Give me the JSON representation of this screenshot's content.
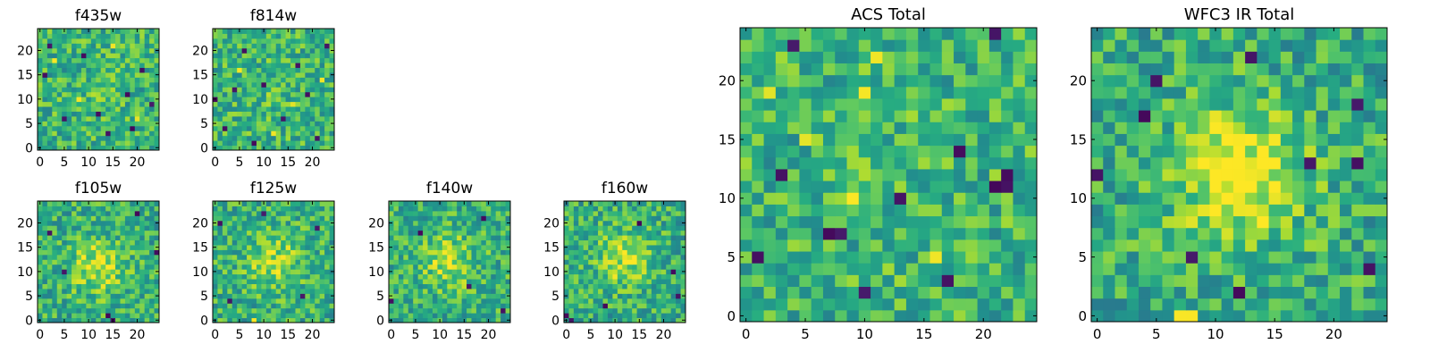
{
  "chart_data": [
    {
      "type": "heatmap",
      "title": "f435w",
      "size": 25,
      "xlim": [
        0,
        24
      ],
      "ylim": [
        0,
        24
      ],
      "xticks": [
        0,
        5,
        10,
        15,
        20
      ],
      "yticks": [
        0,
        5,
        10,
        15,
        20
      ],
      "colormap": "viridis",
      "noise_seed": 11,
      "blob": 0.05,
      "blob_center": [
        12,
        12
      ],
      "dark_pixels": [
        [
          1,
          15
        ],
        [
          5,
          6
        ],
        [
          12,
          7
        ],
        [
          18,
          11
        ],
        [
          19,
          4
        ],
        [
          2,
          21
        ],
        [
          21,
          16
        ],
        [
          9,
          19
        ],
        [
          14,
          3
        ],
        [
          23,
          9
        ]
      ],
      "bright_pixels": [
        [
          3,
          18
        ],
        [
          8,
          10
        ],
        [
          15,
          21
        ],
        [
          20,
          6
        ]
      ]
    },
    {
      "type": "heatmap",
      "title": "f814w",
      "size": 25,
      "xlim": [
        0,
        24
      ],
      "ylim": [
        0,
        24
      ],
      "xticks": [
        0,
        5,
        10,
        15,
        20
      ],
      "yticks": [
        0,
        5,
        10,
        15,
        20
      ],
      "colormap": "viridis",
      "noise_seed": 23,
      "blob": 0.05,
      "blob_center": [
        12,
        12
      ],
      "dark_pixels": [
        [
          2,
          4
        ],
        [
          6,
          20
        ],
        [
          10,
          13
        ],
        [
          14,
          6
        ],
        [
          17,
          17
        ],
        [
          21,
          2
        ],
        [
          0,
          10
        ],
        [
          23,
          21
        ],
        [
          8,
          1
        ],
        [
          19,
          11
        ],
        [
          4,
          12
        ]
      ],
      "bright_pixels": [
        [
          5,
          16
        ],
        [
          12,
          3
        ],
        [
          16,
          9
        ],
        [
          22,
          14
        ]
      ]
    },
    {
      "type": "heatmap",
      "title": "f105w",
      "size": 25,
      "xlim": [
        0,
        24
      ],
      "ylim": [
        0,
        24
      ],
      "xticks": [
        0,
        5,
        10,
        15,
        20
      ],
      "yticks": [
        0,
        5,
        10,
        15,
        20
      ],
      "colormap": "viridis",
      "noise_seed": 37,
      "blob": 0.35,
      "blob_center": [
        12,
        11
      ],
      "dark_pixels": [
        [
          14,
          1
        ],
        [
          15,
          0
        ],
        [
          2,
          18
        ],
        [
          24,
          14
        ],
        [
          5,
          10
        ],
        [
          20,
          22
        ]
      ],
      "bright_pixels": [
        [
          11,
          12
        ],
        [
          12,
          11
        ],
        [
          13,
          12
        ],
        [
          12,
          13
        ]
      ]
    },
    {
      "type": "heatmap",
      "title": "f125w",
      "size": 25,
      "xlim": [
        0,
        24
      ],
      "ylim": [
        0,
        24
      ],
      "xticks": [
        0,
        5,
        10,
        15,
        20
      ],
      "yticks": [
        0,
        5,
        10,
        15,
        20
      ],
      "colormap": "viridis",
      "noise_seed": 41,
      "blob": 0.3,
      "blob_center": [
        12,
        12
      ],
      "dark_pixels": [
        [
          18,
          5
        ],
        [
          3,
          4
        ],
        [
          21,
          19
        ],
        [
          1,
          20
        ],
        [
          10,
          22
        ]
      ],
      "bright_pixels": [
        [
          8,
          0
        ],
        [
          12,
          12
        ],
        [
          14,
          13
        ]
      ]
    },
    {
      "type": "heatmap",
      "title": "f140w",
      "size": 25,
      "xlim": [
        0,
        24
      ],
      "ylim": [
        0,
        24
      ],
      "xticks": [
        0,
        5,
        10,
        15,
        20
      ],
      "yticks": [
        0,
        5,
        10,
        15,
        20
      ],
      "colormap": "viridis",
      "noise_seed": 53,
      "blob": 0.3,
      "blob_center": [
        12,
        12
      ],
      "dark_pixels": [
        [
          0,
          4
        ],
        [
          23,
          2
        ],
        [
          19,
          21
        ],
        [
          6,
          18
        ],
        [
          16,
          7
        ]
      ],
      "bright_pixels": [
        [
          11,
          14
        ],
        [
          13,
          11
        ]
      ]
    },
    {
      "type": "heatmap",
      "title": "f160w",
      "size": 25,
      "xlim": [
        0,
        24
      ],
      "ylim": [
        0,
        24
      ],
      "xticks": [
        0,
        5,
        10,
        15,
        20
      ],
      "yticks": [
        0,
        5,
        10,
        15,
        20
      ],
      "colormap": "viridis",
      "noise_seed": 67,
      "blob": 0.35,
      "blob_center": [
        12,
        13
      ],
      "dark_pixels": [
        [
          22,
          10
        ],
        [
          23,
          5
        ],
        [
          0,
          1
        ],
        [
          1,
          0
        ],
        [
          15,
          20
        ],
        [
          8,
          3
        ]
      ],
      "bright_pixels": [
        [
          12,
          13
        ],
        [
          13,
          12
        ],
        [
          11,
          11
        ]
      ]
    },
    {
      "type": "heatmap",
      "title": "ACS Total",
      "size": 25,
      "xlim": [
        0,
        24
      ],
      "ylim": [
        0,
        24
      ],
      "xticks": [
        0,
        5,
        10,
        15,
        20
      ],
      "yticks": [
        0,
        5,
        10,
        15,
        20
      ],
      "colormap": "viridis",
      "noise_seed": 79,
      "blob": 0.05,
      "blob_center": [
        12,
        12
      ],
      "dark_pixels": [
        [
          1,
          5
        ],
        [
          3,
          12
        ],
        [
          7,
          7
        ],
        [
          8,
          7
        ],
        [
          18,
          14
        ],
        [
          21,
          11
        ],
        [
          22,
          11
        ],
        [
          22,
          12
        ],
        [
          21,
          24
        ],
        [
          4,
          23
        ],
        [
          13,
          10
        ],
        [
          17,
          3
        ],
        [
          10,
          2
        ]
      ],
      "bright_pixels": [
        [
          2,
          19
        ],
        [
          10,
          19
        ],
        [
          9,
          10
        ],
        [
          16,
          5
        ],
        [
          11,
          22
        ],
        [
          5,
          15
        ]
      ]
    },
    {
      "type": "heatmap",
      "title": "WFC3 IR Total",
      "size": 25,
      "xlim": [
        0,
        24
      ],
      "ylim": [
        0,
        24
      ],
      "xticks": [
        0,
        5,
        10,
        15,
        20
      ],
      "yticks": [
        0,
        5,
        10,
        15,
        20
      ],
      "colormap": "viridis",
      "noise_seed": 97,
      "blob": 0.45,
      "blob_center": [
        12,
        12
      ],
      "dark_pixels": [
        [
          0,
          12
        ],
        [
          5,
          20
        ],
        [
          4,
          17
        ],
        [
          8,
          5
        ],
        [
          12,
          2
        ],
        [
          18,
          13
        ],
        [
          22,
          13
        ],
        [
          23,
          4
        ],
        [
          22,
          18
        ],
        [
          13,
          22
        ]
      ],
      "bright_pixels": [
        [
          12,
          12
        ],
        [
          12,
          13
        ],
        [
          13,
          12
        ],
        [
          11,
          12
        ],
        [
          7,
          0
        ],
        [
          8,
          0
        ]
      ]
    }
  ]
}
